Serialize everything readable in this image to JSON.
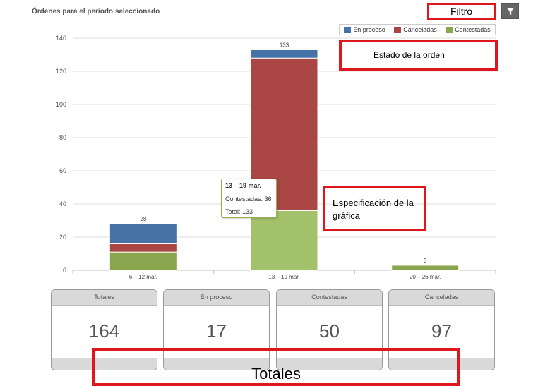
{
  "header": {
    "title": "Órdenes para el periodo seleccionado",
    "filter_label": "Filtro"
  },
  "colors": {
    "en_proceso": "#4572a7",
    "canceladas": "#aa4643",
    "contestadas": "#89a54e",
    "contestadas_highlight": "#a3c06a",
    "callout": "#e0161f"
  },
  "legend": {
    "items": [
      {
        "label": "En proceso",
        "color": "#4572a7"
      },
      {
        "label": "Canceladas",
        "color": "#aa4643"
      },
      {
        "label": "Contestadas",
        "color": "#89a54e"
      }
    ]
  },
  "chart_data": {
    "type": "bar",
    "stacked": true,
    "title": "Órdenes para el periodo seleccionado",
    "categories": [
      "6 – 12 mar.",
      "13 – 19 mar.",
      "20 – 26 mar."
    ],
    "series": [
      {
        "name": "Contestadas",
        "values": [
          11,
          36,
          3
        ]
      },
      {
        "name": "Canceladas",
        "values": [
          5,
          92,
          0
        ]
      },
      {
        "name": "En proceso",
        "values": [
          12,
          5,
          0
        ]
      }
    ],
    "totals": [
      28,
      133,
      3
    ],
    "ylim": [
      0,
      140
    ],
    "yticks": [
      0,
      20,
      40,
      60,
      80,
      100,
      120,
      140
    ],
    "grid": true,
    "legend_position": "top-right"
  },
  "tooltip": {
    "title": "13 – 19 mar.",
    "line1": "Contestadas: 36",
    "line2": "Total: 133"
  },
  "annotations": {
    "estado": "Estado de la orden",
    "especificacion": "Especificación de la gráfica",
    "totales": "Totales"
  },
  "cards": [
    {
      "label": "Totales",
      "value": "164"
    },
    {
      "label": "En proceso",
      "value": "17"
    },
    {
      "label": "Contestadas",
      "value": "50"
    },
    {
      "label": "Canceladas",
      "value": "97"
    }
  ]
}
